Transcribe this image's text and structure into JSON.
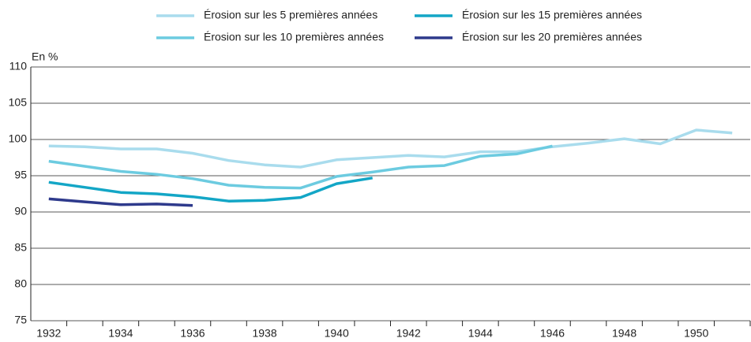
{
  "chart_data": {
    "type": "line",
    "y_label": "En %",
    "categories": [
      "1932",
      null,
      "1934",
      null,
      "1936",
      null,
      "1938",
      null,
      "1940",
      null,
      "1942",
      null,
      "1944",
      null,
      "1946",
      null,
      "1948",
      null,
      "1950",
      null
    ],
    "series": [
      {
        "name": "Érosion sur les 5 premières années",
        "color": "#a9dced",
        "values": [
          99.1,
          99.0,
          98.7,
          98.7,
          98.1,
          97.1,
          96.5,
          96.2,
          97.2,
          97.5,
          97.8,
          97.6,
          98.3,
          98.3,
          99.0,
          99.5,
          100.1,
          99.4,
          101.3,
          100.9
        ]
      },
      {
        "name": "Érosion sur les 10 premières années",
        "color": "#6ccbe0",
        "values": [
          97.0,
          96.3,
          95.6,
          95.2,
          94.6,
          93.7,
          93.4,
          93.3,
          94.9,
          95.5,
          96.2,
          96.4,
          97.7,
          98.0,
          99.1,
          null,
          null,
          null,
          null,
          null
        ]
      },
      {
        "name": "Érosion sur les 15 premières années",
        "color": "#13a6c6",
        "values": [
          94.1,
          93.4,
          92.7,
          92.5,
          92.1,
          91.5,
          91.6,
          92.0,
          93.9,
          94.7,
          null,
          null,
          null,
          null,
          null,
          null,
          null,
          null,
          null,
          null
        ]
      },
      {
        "name": "Érosion sur les 20 premières années",
        "color": "#2e3a8c",
        "values": [
          91.8,
          91.4,
          91.0,
          91.1,
          90.9,
          null,
          null,
          null,
          null,
          null,
          null,
          null,
          null,
          null,
          null,
          null,
          null,
          null,
          null,
          null
        ]
      }
    ],
    "ylim": [
      75,
      110
    ],
    "yticks": [
      75,
      80,
      85,
      90,
      95,
      100,
      105,
      110
    ],
    "grid": true
  }
}
